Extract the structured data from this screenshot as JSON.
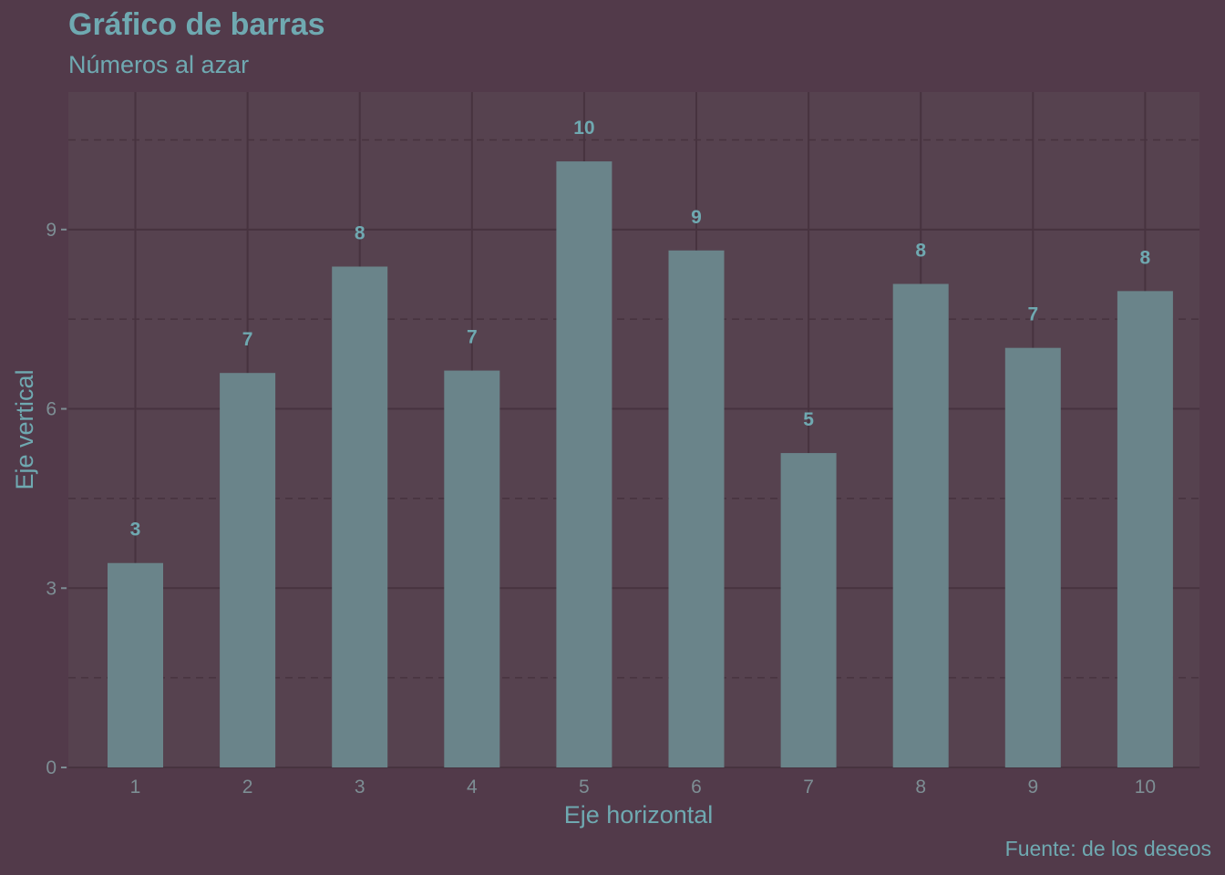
{
  "title": "Gráfico de barras",
  "subtitle": "Números al azar",
  "caption": "Fuente: de los deseos",
  "colors": {
    "background": "#523a4a",
    "panel": "#56424f",
    "bar": "#6a848a",
    "text": "#6fa9b1",
    "tick_text": "#7d8e94",
    "grid": "#47333f"
  },
  "chart_data": {
    "type": "bar",
    "categories": [
      "1",
      "2",
      "3",
      "4",
      "5",
      "6",
      "7",
      "8",
      "9",
      "10"
    ],
    "values": [
      3.42,
      6.6,
      8.38,
      6.64,
      10.14,
      8.65,
      5.26,
      8.09,
      7.02,
      7.97
    ],
    "data_labels": [
      "3",
      "7",
      "8",
      "7",
      "10",
      "9",
      "5",
      "8",
      "7",
      "8"
    ],
    "xlabel": "Eje horizontal",
    "ylabel": "Eje vertical",
    "yticks": [
      0,
      3,
      6,
      9
    ],
    "ylim": [
      0,
      11.3
    ],
    "grid": true
  }
}
